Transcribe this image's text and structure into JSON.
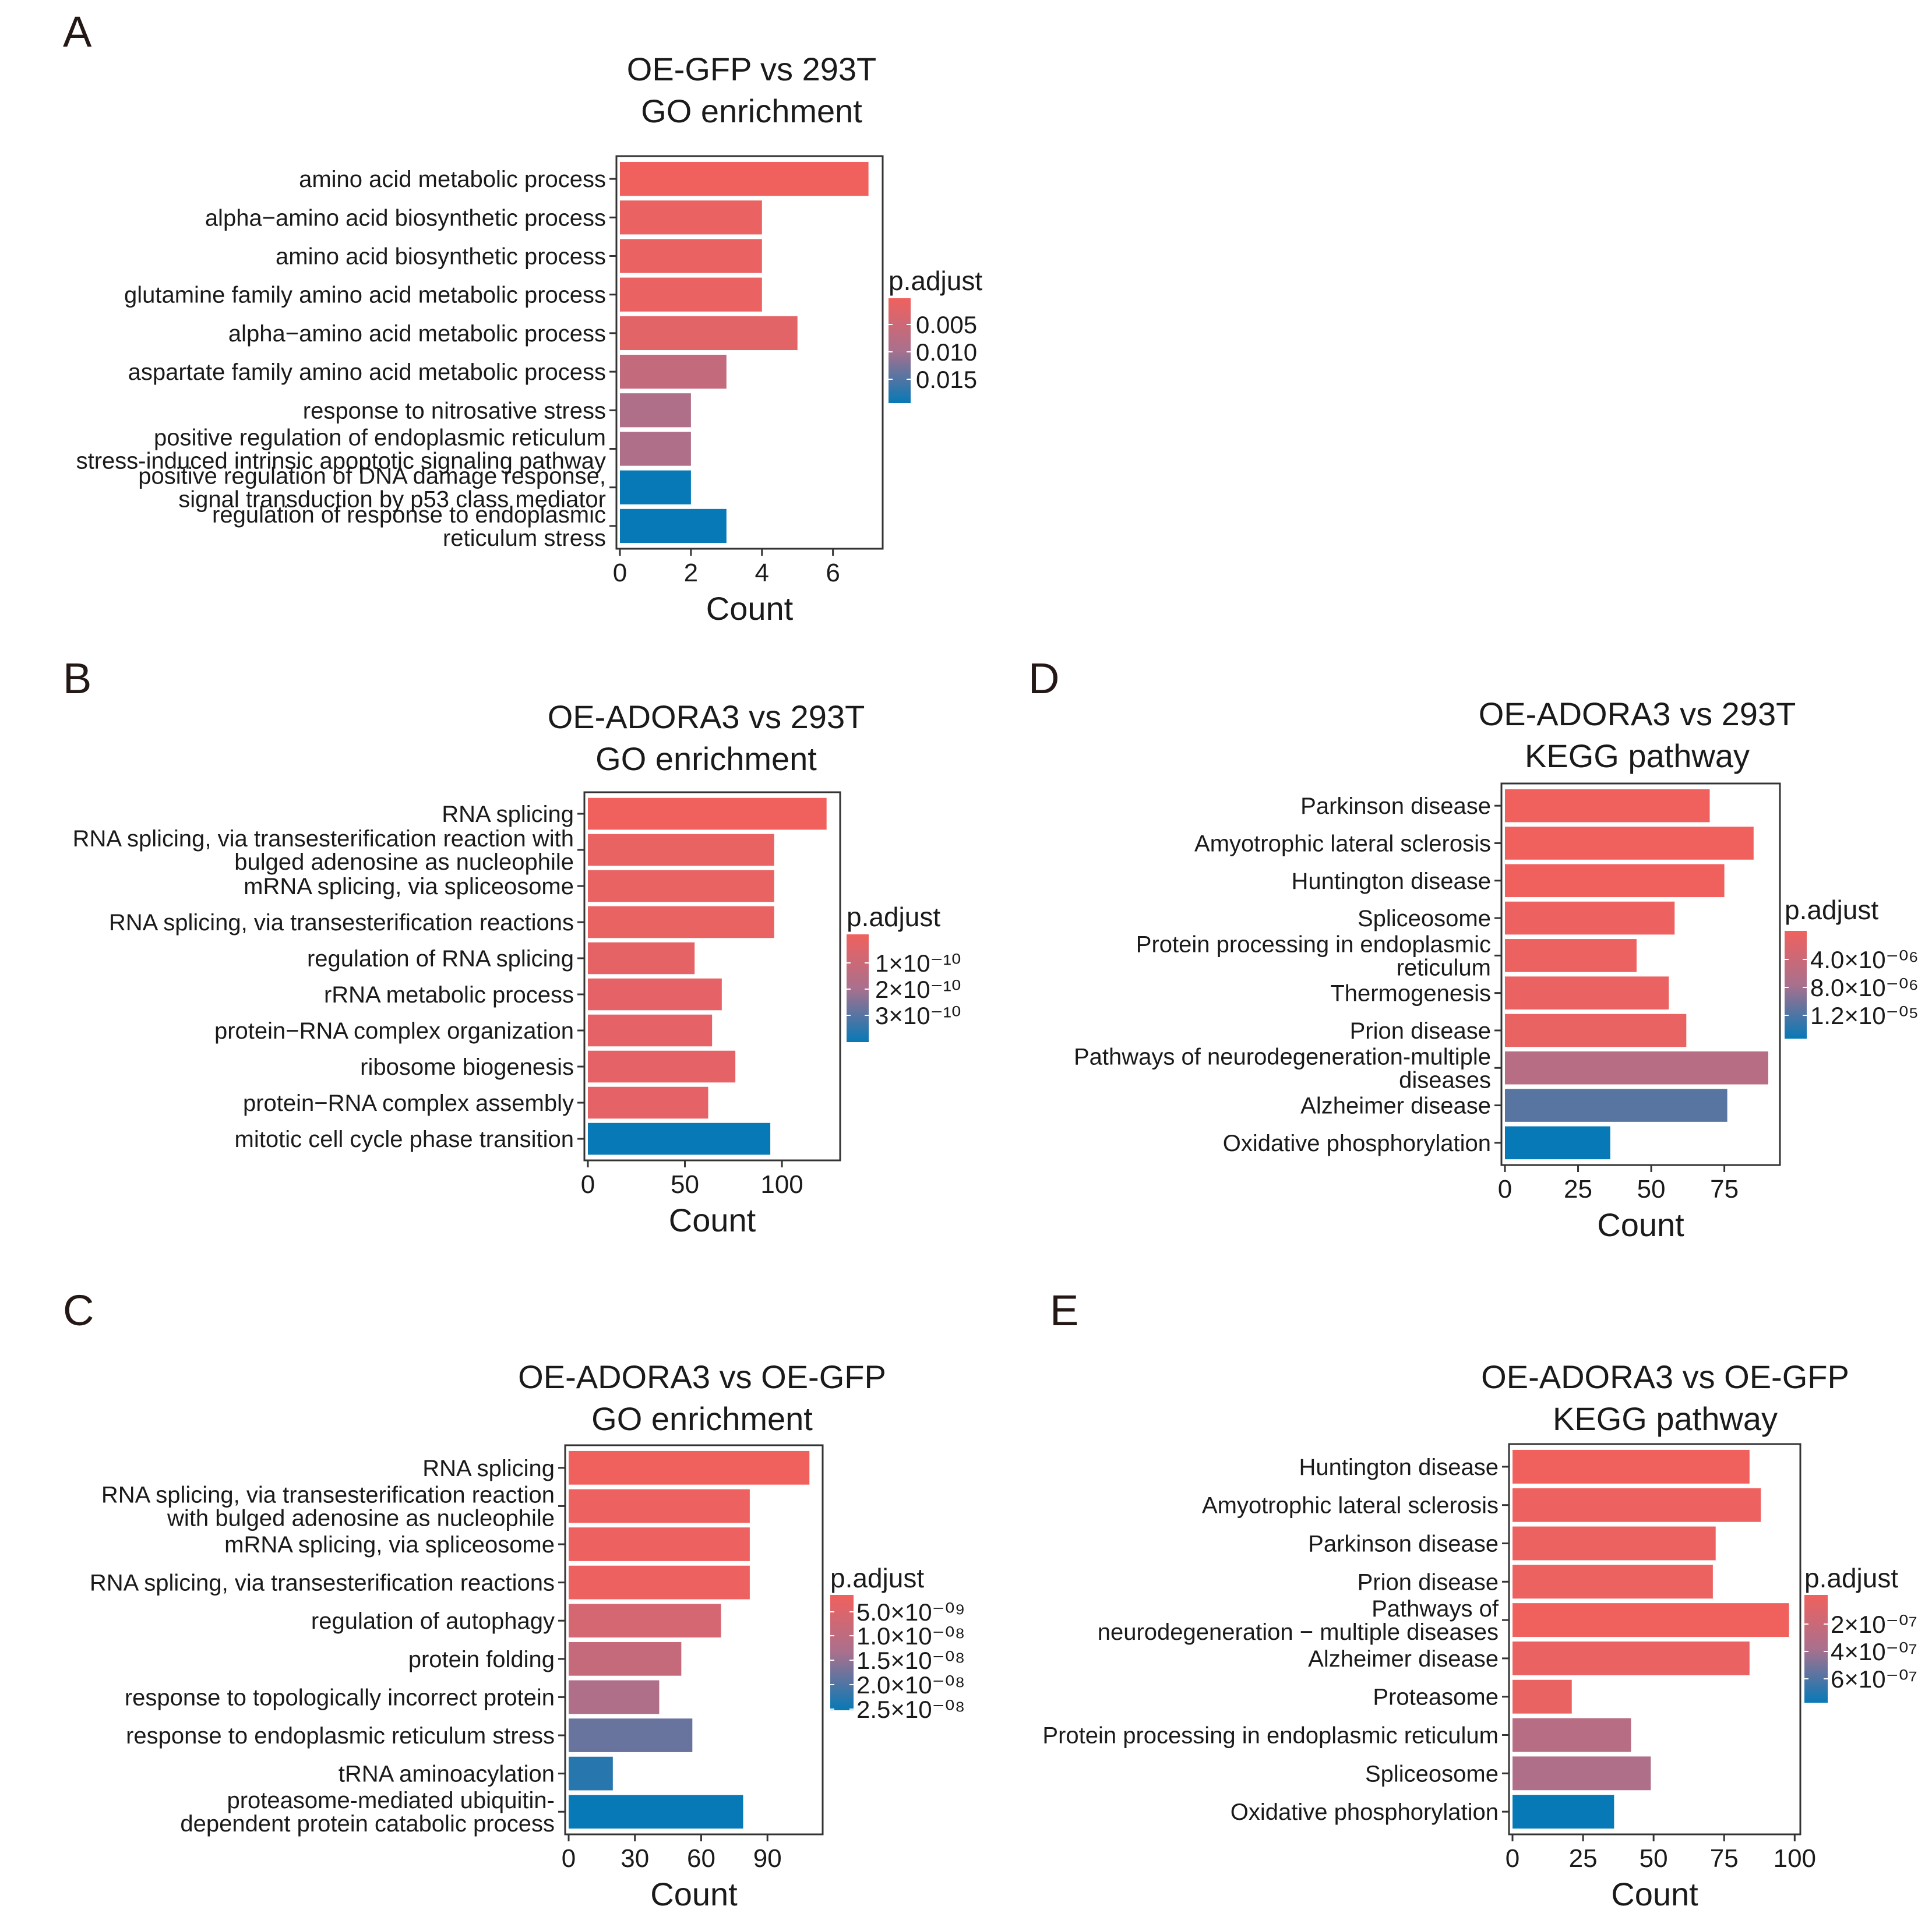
{
  "colors": {
    "high": "#f0615e",
    "mid": "#a9708d",
    "low": "#0779b6"
  },
  "chart_data": [
    {
      "id": "A",
      "type": "bar",
      "orientation": "horizontal",
      "panel_letter": "A",
      "title": [
        "OE-GFP vs 293T",
        "GO enrichment"
      ],
      "xlabel": "Count",
      "xlim": [
        0,
        7.4
      ],
      "xticks": [
        0,
        2,
        4,
        6
      ],
      "xtick_labels": [
        "0",
        "2",
        "4",
        "6"
      ],
      "categories": [
        [
          "amino acid metabolic process"
        ],
        [
          "alpha−amino acid biosynthetic process"
        ],
        [
          "amino acid biosynthetic process"
        ],
        [
          "glutamine family amino acid metabolic process"
        ],
        [
          "alpha−amino acid metabolic process"
        ],
        [
          "aspartate family amino acid metabolic process"
        ],
        [
          "response to nitrosative stress"
        ],
        [
          "positive regulation of endoplasmic reticulum",
          "stress-induced intrinsic apoptotic signaling pathway"
        ],
        [
          "positive regulation of DNA damage response,",
          "signal transduction by p53 class mediator"
        ],
        [
          "regulation of response to endoplasmic",
          "reticulum stress"
        ]
      ],
      "values": [
        7,
        4,
        4,
        4,
        5,
        3,
        2,
        2,
        2,
        3
      ],
      "color_value": [
        0.0,
        0.04,
        0.04,
        0.04,
        0.1,
        0.32,
        0.45,
        0.45,
        1.0,
        1.0
      ],
      "legend": {
        "title": "p.adjust",
        "labels": [
          "0.005",
          "0.010",
          "0.015"
        ]
      }
    },
    {
      "id": "B",
      "type": "bar",
      "orientation": "horizontal",
      "panel_letter": "B",
      "title": [
        "OE-ADORA3 vs 293T",
        "GO enrichment"
      ],
      "xlabel": "Count",
      "xlim": [
        0,
        130
      ],
      "xticks": [
        0,
        50,
        100
      ],
      "xtick_labels": [
        "0",
        "50",
        "100"
      ],
      "categories": [
        [
          "RNA splicing"
        ],
        [
          "RNA splicing, via transesterification reaction with",
          "bulged adenosine as nucleophile"
        ],
        [
          "mRNA splicing, via spliceosome"
        ],
        [
          "RNA splicing, via transesterification reactions"
        ],
        [
          "regulation of RNA splicing"
        ],
        [
          "rRNA metabolic process"
        ],
        [
          "protein−RNA complex organization"
        ],
        [
          "ribosome biogenesis"
        ],
        [
          "protein−RNA complex assembly"
        ],
        [
          "mitotic cell cycle phase transition"
        ]
      ],
      "values": [
        123,
        96,
        96,
        96,
        55,
        69,
        64,
        76,
        62,
        94
      ],
      "color_value": [
        0.0,
        0.05,
        0.05,
        0.05,
        0.07,
        0.08,
        0.08,
        0.08,
        0.08,
        1.0
      ],
      "legend": {
        "title": "p.adjust",
        "labels": [
          "1×10⁻¹⁰",
          "2×10⁻¹⁰",
          "3×10⁻¹⁰"
        ]
      }
    },
    {
      "id": "C",
      "type": "bar",
      "orientation": "horizontal",
      "panel_letter": "C",
      "title": [
        "OE-ADORA3 vs OE-GFP",
        "GO enrichment"
      ],
      "xlabel": "Count",
      "xlim": [
        0,
        115
      ],
      "xticks": [
        0,
        30,
        60,
        90
      ],
      "xtick_labels": [
        "0",
        "30",
        "60",
        "90"
      ],
      "categories": [
        [
          "RNA splicing"
        ],
        [
          "RNA splicing, via transesterification reaction",
          "with bulged adenosine as nucleophile"
        ],
        [
          "mRNA splicing, via spliceosome"
        ],
        [
          "RNA splicing, via transesterification reactions"
        ],
        [
          "regulation of autophagy"
        ],
        [
          "protein folding"
        ],
        [
          "response to topologically incorrect protein"
        ],
        [
          "response to endoplasmic reticulum stress"
        ],
        [
          "tRNA aminoacylation"
        ],
        [
          "proteasome-mediated ubiquitin-",
          "dependent protein catabolic process"
        ]
      ],
      "values": [
        109,
        82,
        82,
        82,
        69,
        51,
        41,
        56,
        20,
        79
      ],
      "color_value": [
        0.0,
        0.02,
        0.02,
        0.02,
        0.2,
        0.3,
        0.45,
        0.7,
        0.9,
        1.0
      ],
      "legend": {
        "title": "p.adjust",
        "labels": [
          "5.0×10⁻⁰⁹",
          "1.0×10⁻⁰⁸",
          "1.5×10⁻⁰⁸",
          "2.0×10⁻⁰⁸",
          "2.5×10⁻⁰⁸"
        ]
      }
    },
    {
      "id": "D",
      "type": "bar",
      "orientation": "horizontal",
      "panel_letter": "D",
      "title": [
        "OE-ADORA3 vs 293T",
        "KEGG pathway"
      ],
      "xlabel": "Count",
      "xlim": [
        0,
        94
      ],
      "xticks": [
        0,
        25,
        50,
        75
      ],
      "xtick_labels": [
        "0",
        "25",
        "50",
        "75"
      ],
      "categories": [
        [
          "Parkinson disease"
        ],
        [
          "Amyotrophic lateral sclerosis"
        ],
        [
          "Huntington disease"
        ],
        [
          "Spliceosome"
        ],
        [
          "Protein processing in endoplasmic",
          "reticulum"
        ],
        [
          "Thermogenesis"
        ],
        [
          "Prion disease"
        ],
        [
          "Pathways of neurodegeneration-multiple",
          "diseases"
        ],
        [
          "Alzheimer disease"
        ],
        [
          "Oxidative phosphorylation"
        ]
      ],
      "values": [
        70,
        85,
        75,
        58,
        45,
        56,
        62,
        90,
        76,
        36
      ],
      "color_value": [
        0.0,
        0.0,
        0.0,
        0.02,
        0.03,
        0.04,
        0.05,
        0.4,
        0.75,
        1.0
      ],
      "legend": {
        "title": "p.adjust",
        "labels": [
          "4.0×10⁻⁰⁶",
          "8.0×10⁻⁰⁶",
          "1.2×10⁻⁰⁵"
        ]
      }
    },
    {
      "id": "E",
      "type": "bar",
      "orientation": "horizontal",
      "panel_letter": "E",
      "title": [
        "OE-ADORA3 vs OE-GFP",
        "KEGG pathway"
      ],
      "xlabel": "Count",
      "xlim": [
        0,
        102
      ],
      "xticks": [
        0,
        25,
        50,
        75,
        100
      ],
      "xtick_labels": [
        "0",
        "25",
        "50",
        "75",
        "100"
      ],
      "categories": [
        [
          "Huntington disease"
        ],
        [
          "Amyotrophic lateral sclerosis"
        ],
        [
          "Parkinson disease"
        ],
        [
          "Prion disease"
        ],
        [
          "Pathways of",
          "neurodegeneration − multiple diseases"
        ],
        [
          "Alzheimer disease"
        ],
        [
          "Proteasome"
        ],
        [
          "Protein processing in endoplasmic reticulum"
        ],
        [
          "Spliceosome"
        ],
        [
          "Oxidative phosphorylation"
        ]
      ],
      "values": [
        84,
        88,
        72,
        71,
        98,
        84,
        21,
        42,
        49,
        36
      ],
      "color_value": [
        0.0,
        0.02,
        0.03,
        0.03,
        0.0,
        0.04,
        0.05,
        0.4,
        0.45,
        1.0
      ],
      "legend": {
        "title": "p.adjust",
        "labels": [
          "2×10⁻⁰⁷",
          "4×10⁻⁰⁷",
          "6×10⁻⁰⁷"
        ]
      }
    }
  ]
}
